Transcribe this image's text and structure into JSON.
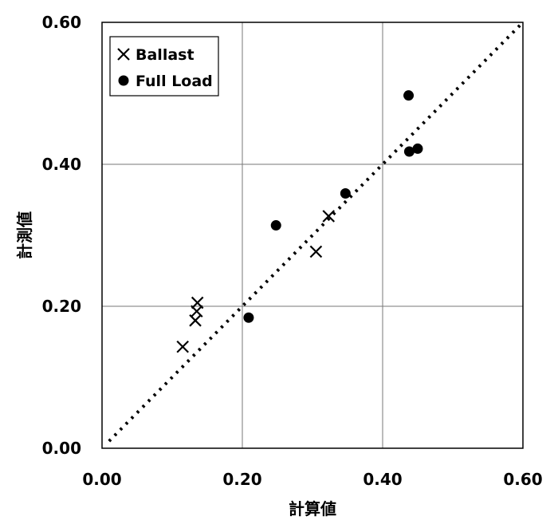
{
  "chart_data": {
    "type": "scatter",
    "title": "",
    "xlabel": "計算値",
    "ylabel": "計測値",
    "xlim": [
      0,
      0.6
    ],
    "ylim": [
      0,
      0.6
    ],
    "xticks": [
      "0.00",
      "0.20",
      "0.40",
      "0.60"
    ],
    "yticks": [
      "0.00",
      "0.20",
      "0.40",
      "0.60"
    ],
    "grid": true,
    "legend_position": "top-left",
    "series": [
      {
        "name": "Ballast",
        "marker": "x",
        "color": "#000000",
        "points": [
          {
            "x": 0.115,
            "y": 0.143
          },
          {
            "x": 0.133,
            "y": 0.18
          },
          {
            "x": 0.135,
            "y": 0.193
          },
          {
            "x": 0.136,
            "y": 0.205
          },
          {
            "x": 0.305,
            "y": 0.277
          },
          {
            "x": 0.323,
            "y": 0.327
          }
        ]
      },
      {
        "name": "Full Load",
        "marker": "circle",
        "color": "#000000",
        "points": [
          {
            "x": 0.209,
            "y": 0.184
          },
          {
            "x": 0.248,
            "y": 0.314
          },
          {
            "x": 0.347,
            "y": 0.359
          },
          {
            "x": 0.437,
            "y": 0.497
          },
          {
            "x": 0.438,
            "y": 0.418
          },
          {
            "x": 0.45,
            "y": 0.422
          }
        ]
      }
    ],
    "reference_line": {
      "style": "dotted",
      "from": [
        0.01,
        0.01
      ],
      "to": [
        0.6,
        0.6
      ]
    }
  }
}
